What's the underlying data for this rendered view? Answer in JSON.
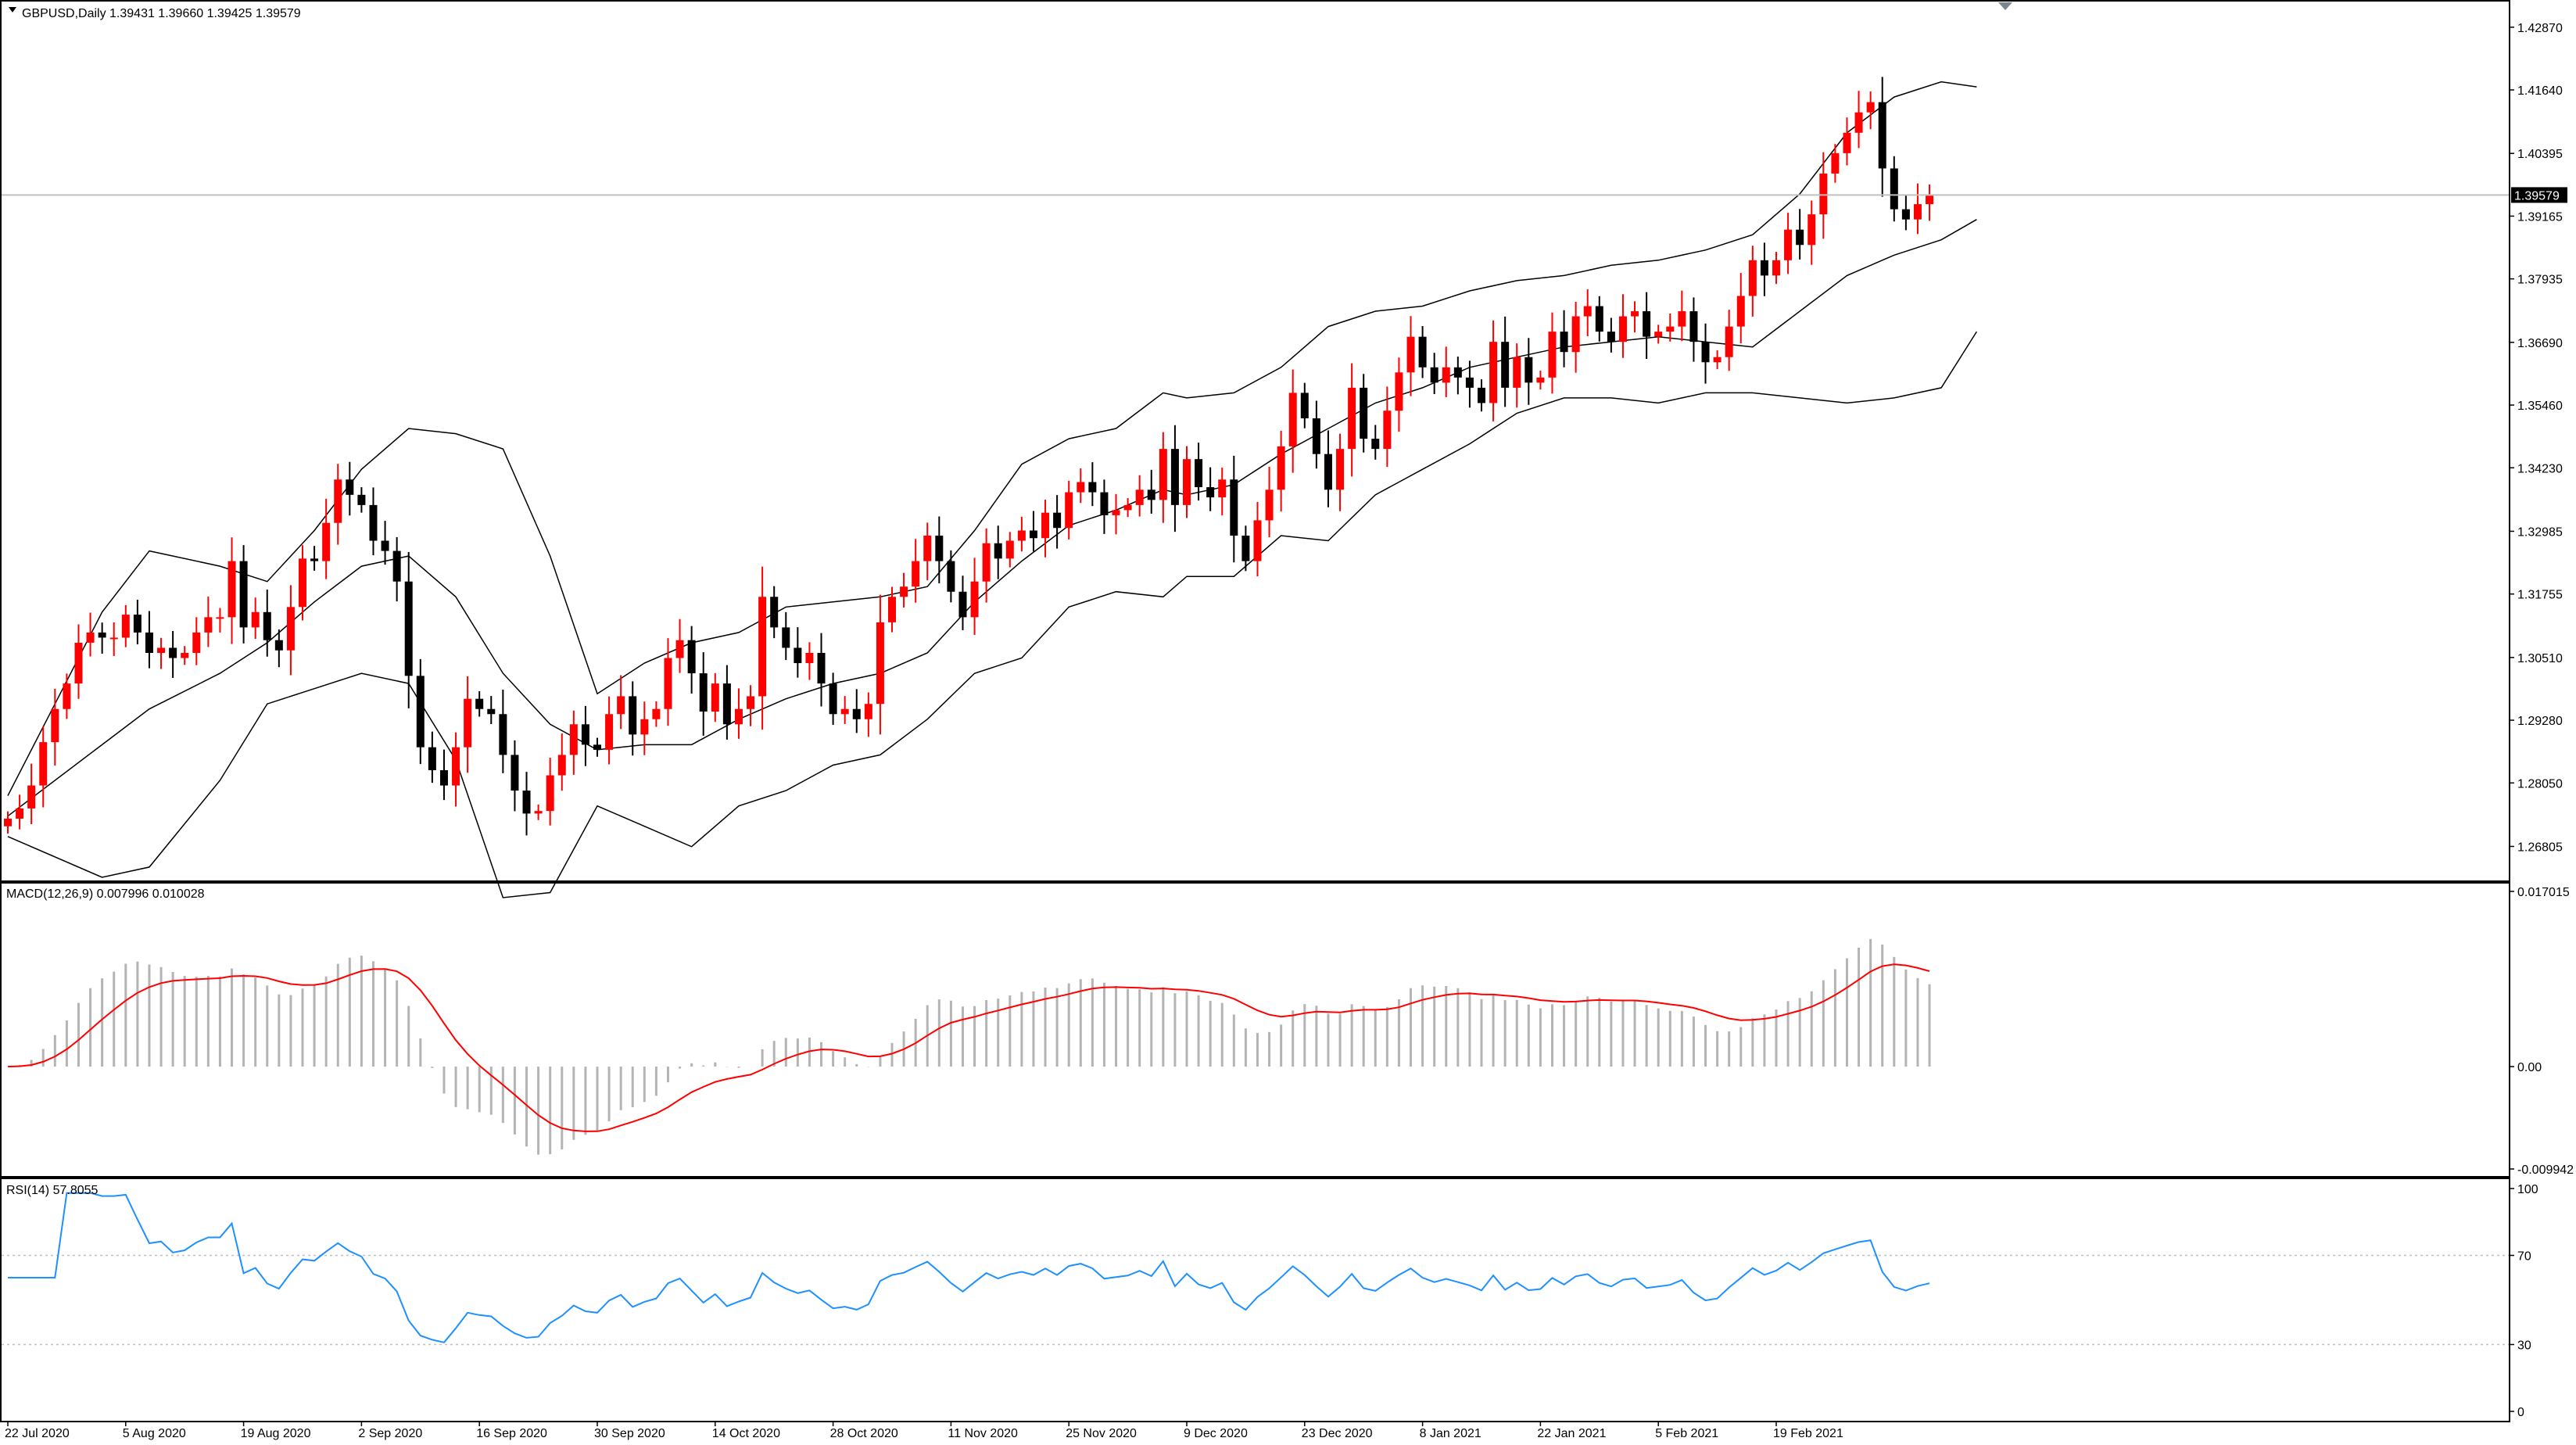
{
  "chart_window": {
    "symbol_header": "GBPUSD,Daily  1.39431 1.39660 1.39425 1.39579",
    "current_price_label": "1.39579"
  },
  "colors": {
    "bull": "#ff0000",
    "bear": "#000000",
    "bands": "#000000",
    "macd_hist": "#b4b4b4",
    "macd_signal": "#ff0000",
    "rsi": "#1e90ff",
    "price_line": "#c0c0c0",
    "grid_dotted": "#c0c0c0"
  },
  "chart_data": [
    {
      "type": "candlestick",
      "panel": "price",
      "y_ticks": [
        "1.42870",
        "1.41640",
        "1.40395",
        "1.39165",
        "1.37935",
        "1.36690",
        "1.35460",
        "1.34230",
        "1.32985",
        "1.31755",
        "1.30510",
        "1.29280",
        "1.28050",
        "1.26805"
      ],
      "ylim": [
        1.2646,
        1.4302
      ],
      "x_ticks": [
        "22 Jul 2020",
        "5 Aug 2020",
        "19 Aug 2020",
        "2 Sep 2020",
        "16 Sep 2020",
        "30 Sep 2020",
        "14 Oct 2020",
        "28 Oct 2020",
        "11 Nov 2020",
        "25 Nov 2020",
        "9 Dec 2020",
        "23 Dec 2020",
        "8 Jan 2021",
        "22 Jan 2021",
        "5 Feb 2021",
        "19 Feb 2021"
      ],
      "current_price": 1.39579,
      "close": [
        1.2735,
        1.2755,
        1.28,
        1.2885,
        1.295,
        1.3,
        1.308,
        1.31,
        1.309,
        1.309,
        1.3135,
        1.31,
        1.306,
        1.307,
        1.305,
        1.306,
        1.31,
        1.313,
        1.313,
        1.324,
        1.311,
        1.314,
        1.3085,
        1.3065,
        1.315,
        1.3245,
        1.324,
        1.3315,
        1.34,
        1.337,
        1.335,
        1.328,
        1.326,
        1.32,
        1.3015,
        1.2875,
        1.283,
        1.28,
        1.2875,
        1.297,
        1.295,
        1.294,
        1.286,
        1.279,
        1.2745,
        1.275,
        1.282,
        1.286,
        1.292,
        1.288,
        1.287,
        1.294,
        1.2975,
        1.29,
        1.293,
        1.295,
        1.305,
        1.3085,
        1.302,
        1.2945,
        1.3,
        1.292,
        1.295,
        1.2975,
        1.317,
        1.311,
        1.307,
        1.304,
        1.306,
        1.3,
        1.294,
        1.295,
        1.293,
        1.296,
        1.312,
        1.317,
        1.319,
        1.324,
        1.329,
        1.324,
        1.318,
        1.313,
        1.32,
        1.3275,
        1.3245,
        1.328,
        1.33,
        1.3285,
        1.3335,
        1.3305,
        1.3375,
        1.3395,
        1.3375,
        1.333,
        1.334,
        1.335,
        1.338,
        1.336,
        1.346,
        1.335,
        1.344,
        1.3385,
        1.3365,
        1.34,
        1.329,
        1.324,
        1.332,
        1.338,
        1.3465,
        1.357,
        1.352,
        1.345,
        1.338,
        1.346,
        1.358,
        1.348,
        1.346,
        1.3535,
        1.361,
        1.368,
        1.362,
        1.359,
        1.362,
        1.36,
        1.358,
        1.355,
        1.367,
        1.358,
        1.364,
        1.359,
        1.36,
        1.369,
        1.365,
        1.372,
        1.374,
        1.369,
        1.367,
        1.372,
        1.373,
        1.368,
        1.369,
        1.37,
        1.373,
        1.367,
        1.363,
        1.364,
        1.37,
        1.376,
        1.383,
        1.38,
        1.383,
        1.389,
        1.386,
        1.392,
        1.4,
        1.404,
        1.408,
        1.412,
        1.414,
        1.401,
        1.393,
        1.391,
        1.394,
        1.3958
      ],
      "bollinger": {
        "x_index": [
          0,
          8,
          12,
          18,
          22,
          26,
          30,
          34,
          38,
          42,
          46,
          50,
          54,
          58,
          62,
          66,
          70,
          74,
          78,
          82,
          86,
          90,
          94,
          98,
          100,
          104,
          108,
          112,
          116,
          120,
          124,
          128,
          132,
          136,
          140,
          144,
          148,
          152,
          156,
          160,
          164,
          167
        ],
        "middle": [
          1.274,
          1.288,
          1.295,
          1.302,
          1.308,
          1.316,
          1.323,
          1.325,
          1.317,
          1.302,
          1.292,
          1.287,
          1.288,
          1.288,
          1.293,
          1.297,
          1.3,
          1.302,
          1.306,
          1.316,
          1.324,
          1.331,
          1.334,
          1.338,
          1.337,
          1.339,
          1.345,
          1.35,
          1.355,
          1.358,
          1.362,
          1.364,
          1.366,
          1.367,
          1.368,
          1.367,
          1.366,
          1.373,
          1.38,
          1.384,
          1.387,
          1.391
        ],
        "upper": [
          1.278,
          1.314,
          1.326,
          1.323,
          1.32,
          1.33,
          1.342,
          1.35,
          1.349,
          1.346,
          1.325,
          1.298,
          1.304,
          1.308,
          1.31,
          1.315,
          1.316,
          1.317,
          1.319,
          1.33,
          1.343,
          1.348,
          1.35,
          1.357,
          1.356,
          1.357,
          1.362,
          1.37,
          1.373,
          1.374,
          1.377,
          1.379,
          1.38,
          1.382,
          1.383,
          1.385,
          1.388,
          1.396,
          1.408,
          1.415,
          1.418,
          1.417
        ],
        "lower": [
          1.27,
          1.262,
          1.264,
          1.281,
          1.296,
          1.299,
          1.302,
          1.3,
          1.285,
          1.258,
          1.259,
          1.276,
          1.272,
          1.268,
          1.276,
          1.279,
          1.284,
          1.286,
          1.293,
          1.302,
          1.305,
          1.315,
          1.318,
          1.317,
          1.321,
          1.321,
          1.329,
          1.328,
          1.337,
          1.342,
          1.347,
          1.353,
          1.356,
          1.356,
          1.355,
          1.357,
          1.357,
          1.356,
          1.355,
          1.356,
          1.358,
          1.369
        ]
      }
    },
    {
      "type": "macd",
      "panel": "macd",
      "header": "MACD(12,26,9) 0.007996 0.010028",
      "params": [
        12,
        26,
        9
      ],
      "main_value": 0.007996,
      "signal_value": 0.010028,
      "y_ticks": [
        "0.017015",
        "0.00",
        "-0.009942"
      ],
      "ylim": [
        -0.009942,
        0.017015
      ]
    },
    {
      "type": "line",
      "panel": "rsi",
      "header": "RSI(14) 57.8055",
      "period": 14,
      "value": 57.8055,
      "y_ticks": [
        "100",
        "70",
        "30",
        "0"
      ],
      "ylim": [
        0,
        100
      ],
      "levels": [
        70,
        30
      ]
    }
  ]
}
